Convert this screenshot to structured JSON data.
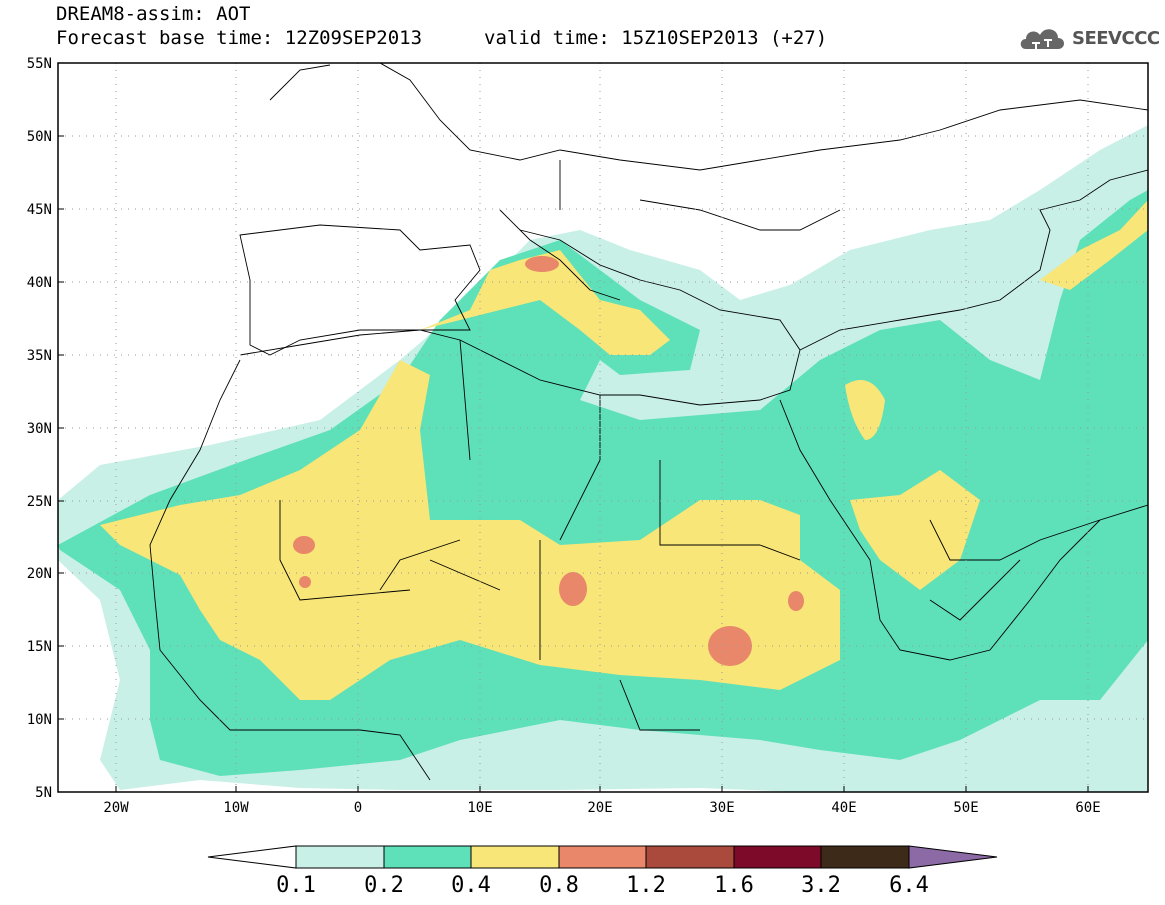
{
  "header": {
    "title": "DREAM8-assim: AOT",
    "base_time": "Forecast base time: 12Z09SEP2013",
    "valid_time": "valid time: 15Z10SEP2013 (+27)"
  },
  "logo": {
    "text": "SEEVCCC",
    "icon": "cloud-icon"
  },
  "map": {
    "lon_range": [
      -25,
      65
    ],
    "lat_range": [
      5,
      55
    ],
    "lat_ticks": [
      "55N",
      "50N",
      "45N",
      "40N",
      "35N",
      "30N",
      "25N",
      "20N",
      "15N",
      "10N",
      "5N"
    ],
    "lon_ticks": [
      "20W",
      "10W",
      "0",
      "10E",
      "20E",
      "30E",
      "40E",
      "50E",
      "60E"
    ],
    "grid": "dotted"
  },
  "colorbar": {
    "labels": [
      "0.1",
      "0.2",
      "0.4",
      "0.8",
      "1.2",
      "1.6",
      "3.2",
      "6.4"
    ],
    "colors": [
      "#ffffff",
      "#c8f0e6",
      "#5ee0b8",
      "#f8e678",
      "#e8876a",
      "#aa4a3c",
      "#7e0a2a",
      "#3e2a18",
      "#8c6aa6"
    ]
  },
  "legend_colors": {
    "c01": "#c8f0e6",
    "c02": "#5ee0b8",
    "c04": "#f8e678",
    "c08": "#e8876a"
  }
}
